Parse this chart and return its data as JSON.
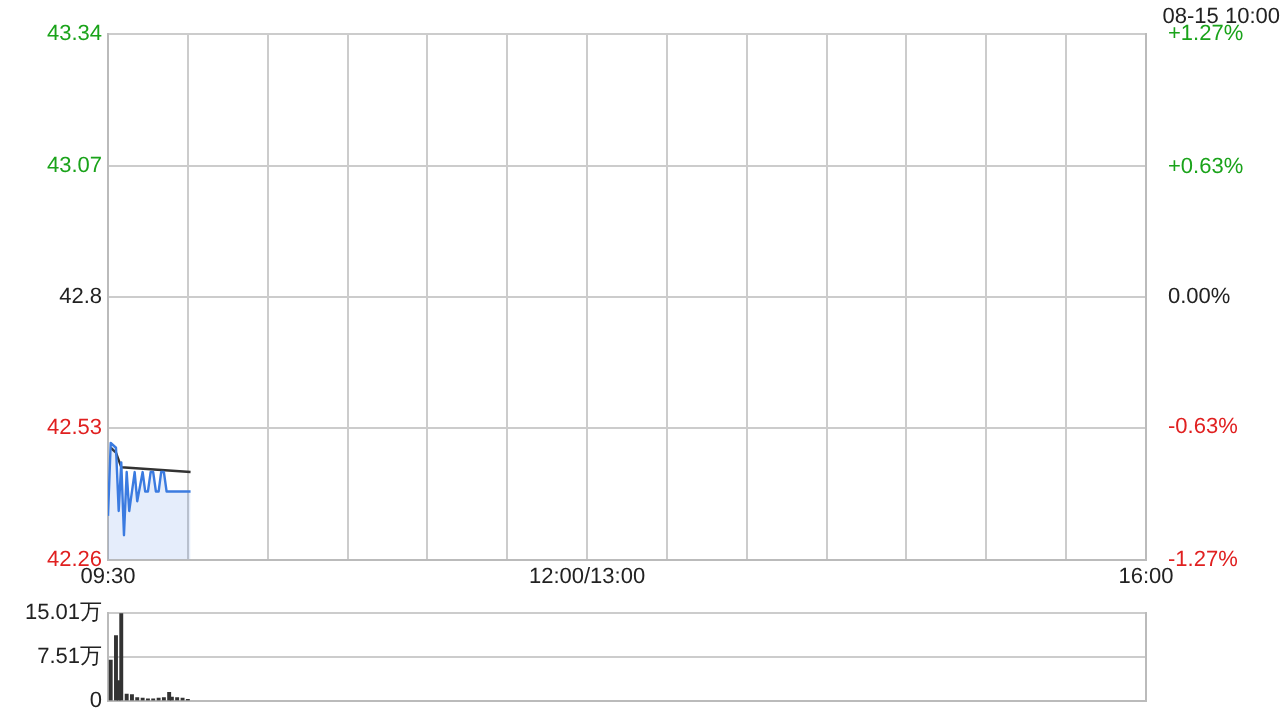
{
  "chart_data": [
    {
      "type": "line",
      "subtitle": "08-15 10:00",
      "grid": true,
      "legend": false,
      "marker": "none",
      "xlim": [
        9.5,
        16
      ],
      "xticks": [
        {
          "value": 9.5,
          "label": "09:30"
        },
        {
          "value": 10,
          "label": null
        },
        {
          "value": 10.5,
          "label": null
        },
        {
          "value": 11,
          "label": null
        },
        {
          "value": 11.5,
          "label": null
        },
        {
          "value": 12,
          "label": null
        },
        {
          "value": 12.5,
          "label": "12:00/13:00"
        },
        {
          "value": 13,
          "label": null
        },
        {
          "value": 13.5,
          "label": null
        },
        {
          "value": 14,
          "label": null
        },
        {
          "value": 14.5,
          "label": null
        },
        {
          "value": 15,
          "label": null
        },
        {
          "value": 15.5,
          "label": null
        },
        {
          "value": 16,
          "label": "16:00"
        }
      ],
      "ylim": [
        42.26,
        43.34
      ],
      "yticks": [
        42.26,
        42.53,
        42.8,
        43.07,
        43.34
      ],
      "y2lim": [
        -1.27,
        1.27
      ],
      "y2ticks": [
        {
          "value": -1.27,
          "label": "-1.27%"
        },
        {
          "value": -0.63,
          "label": "-0.63%"
        },
        {
          "value": 0,
          "label": "0.00%"
        },
        {
          "value": 0.63,
          "label": "+0.63%"
        },
        {
          "value": 1.27,
          "label": "+1.27%"
        }
      ],
      "series": [
        {
          "type": "area",
          "color": "#3b7be0",
          "x": [
            9.5,
            9.517,
            9.55,
            9.567,
            9.583,
            9.6,
            9.617,
            9.633,
            9.667,
            9.683,
            9.717,
            9.733,
            9.75,
            9.767,
            9.783,
            9.8,
            9.817,
            9.833,
            9.85,
            9.867,
            9.883,
            9.9,
            10.017
          ],
          "values": [
            42.35,
            42.5,
            42.49,
            42.36,
            42.46,
            42.31,
            42.44,
            42.36,
            42.44,
            42.38,
            42.44,
            42.4,
            42.4,
            42.44,
            42.44,
            42.4,
            42.4,
            42.44,
            42.44,
            42.4,
            42.4,
            42.4,
            42.4
          ]
        },
        {
          "type": "line",
          "color": "#333333",
          "x": [
            9.517,
            9.55,
            9.583,
            10.017
          ],
          "values": [
            42.49,
            42.48,
            42.45,
            42.44
          ]
        }
      ]
    },
    {
      "type": "bar",
      "grid": "y",
      "legend": false,
      "tick_labels": "y",
      "color": "#333333",
      "xlim": [
        9.5,
        16
      ],
      "ylim": [
        0,
        15.01
      ],
      "yticks": [
        {
          "value": 0,
          "label": "0"
        },
        {
          "value": 7.51,
          "label": "7.51万"
        },
        {
          "value": 15.01,
          "label": "15.01万"
        }
      ],
      "x": [
        9.517,
        9.55,
        9.567,
        9.583,
        9.617,
        9.65,
        9.683,
        9.717,
        9.75,
        9.783,
        9.817,
        9.85,
        9.883,
        9.9,
        9.933,
        9.967,
        10
      ],
      "values": [
        6.9,
        11.1,
        3.4,
        15,
        1.1,
        1.0,
        0.5,
        0.4,
        0.3,
        0.3,
        0.4,
        0.5,
        1.4,
        0.6,
        0.5,
        0.4,
        0.2
      ]
    }
  ]
}
